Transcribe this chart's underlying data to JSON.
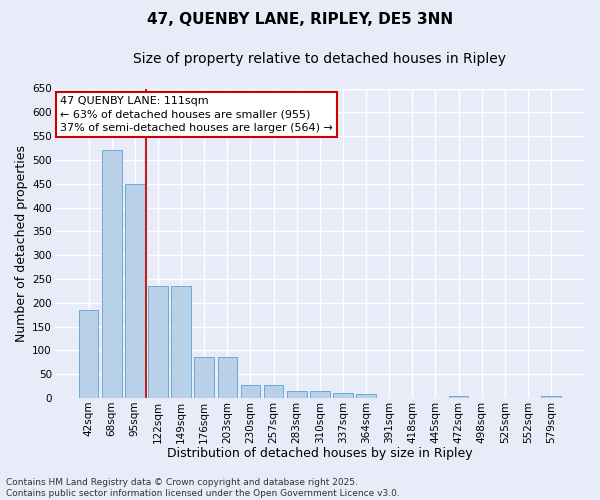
{
  "title_line1": "47, QUENBY LANE, RIPLEY, DE5 3NN",
  "title_line2": "Size of property relative to detached houses in Ripley",
  "xlabel": "Distribution of detached houses by size in Ripley",
  "ylabel": "Number of detached properties",
  "categories": [
    "42sqm",
    "68sqm",
    "95sqm",
    "122sqm",
    "149sqm",
    "176sqm",
    "203sqm",
    "230sqm",
    "257sqm",
    "283sqm",
    "310sqm",
    "337sqm",
    "364sqm",
    "391sqm",
    "418sqm",
    "445sqm",
    "472sqm",
    "498sqm",
    "525sqm",
    "552sqm",
    "579sqm"
  ],
  "values": [
    185,
    520,
    450,
    235,
    235,
    85,
    85,
    28,
    28,
    15,
    15,
    10,
    8,
    0,
    0,
    0,
    5,
    0,
    0,
    0,
    5
  ],
  "bar_color": "#b8d0e8",
  "bar_edge_color": "#6aaad4",
  "vline_color": "#bb2222",
  "ylim": [
    0,
    650
  ],
  "yticks": [
    0,
    50,
    100,
    150,
    200,
    250,
    300,
    350,
    400,
    450,
    500,
    550,
    600,
    650
  ],
  "annotation_line1": "47 QUENBY LANE: 111sqm",
  "annotation_line2": "← 63% of detached houses are smaller (955)",
  "annotation_line3": "37% of semi-detached houses are larger (564) →",
  "annotation_box_color": "#cc0000",
  "bg_color": "#e8ecf8",
  "plot_bg_color": "#e8ecf8",
  "grid_color": "#ffffff",
  "title_fontsize": 11,
  "subtitle_fontsize": 10,
  "tick_fontsize": 7.5,
  "label_fontsize": 9,
  "annotation_fontsize": 8,
  "footer_fontsize": 6.5,
  "footer_line1": "Contains HM Land Registry data © Crown copyright and database right 2025.",
  "footer_line2": "Contains public sector information licensed under the Open Government Licence v3.0."
}
